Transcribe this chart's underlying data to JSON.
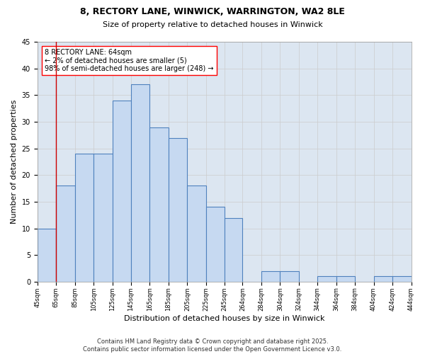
{
  "title_line1": "8, RECTORY LANE, WINWICK, WARRINGTON, WA2 8LE",
  "title_line2": "Size of property relative to detached houses in Winwick",
  "xlabel": "Distribution of detached houses by size in Winwick",
  "ylabel": "Number of detached properties",
  "annotation_text": "8 RECTORY LANE: 64sqm\n← 2% of detached houses are smaller (5)\n98% of semi-detached houses are larger (248) →",
  "footer_line1": "Contains HM Land Registry data © Crown copyright and database right 2025.",
  "footer_line2": "Contains public sector information licensed under the Open Government Licence v3.0.",
  "bar_left_edges": [
    45,
    65,
    85,
    105,
    125,
    145,
    165,
    185,
    205,
    225,
    245,
    264,
    284,
    304,
    324,
    344,
    364,
    384,
    404,
    424
  ],
  "bar_heights": [
    10,
    18,
    24,
    24,
    34,
    37,
    29,
    27,
    18,
    14,
    12,
    0,
    2,
    2,
    0,
    1,
    1,
    0,
    1,
    1
  ],
  "bar_color": "#c6d9f1",
  "bar_edge_color": "#4f81bd",
  "grid_color": "#cccccc",
  "background_color": "#dce6f1",
  "red_line_x": 65,
  "ylim": [
    0,
    45
  ],
  "yticks": [
    0,
    5,
    10,
    15,
    20,
    25,
    30,
    35,
    40,
    45
  ],
  "all_tick_labels": [
    "45sqm",
    "65sqm",
    "85sqm",
    "105sqm",
    "125sqm",
    "145sqm",
    "165sqm",
    "185sqm",
    "205sqm",
    "225sqm",
    "245sqm",
    "264sqm",
    "284sqm",
    "304sqm",
    "324sqm",
    "344sqm",
    "364sqm",
    "384sqm",
    "404sqm",
    "424sqm",
    "444sqm"
  ],
  "title_fontsize": 9,
  "subtitle_fontsize": 8,
  "ylabel_fontsize": 8,
  "xlabel_fontsize": 8,
  "tick_fontsize": 6,
  "annotation_fontsize": 7,
  "footer_fontsize": 6
}
